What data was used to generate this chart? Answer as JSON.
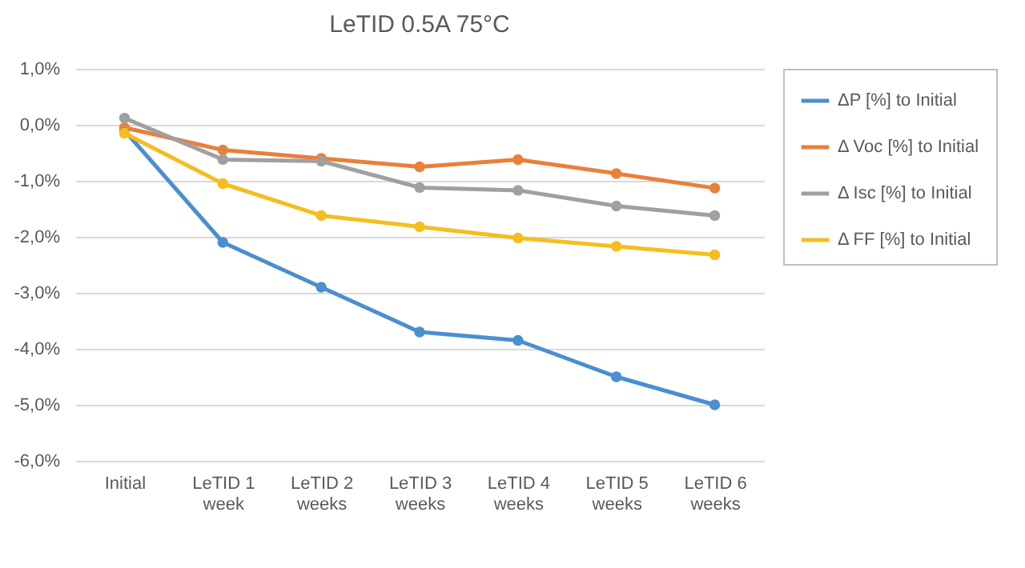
{
  "chart_data": {
    "type": "line",
    "title": "LeTID 0.5A 75°C",
    "categories": [
      "Initial",
      "LeTID 1 week",
      "LeTID 2 weeks",
      "LeTID 3 weeks",
      "LeTID 4 weeks",
      "LeTID 5 weeks",
      "LeTID 6 weeks"
    ],
    "series": [
      {
        "name": "ΔP [%] to Initial",
        "color": "#4a8fcf",
        "values": [
          -0.1,
          -2.1,
          -2.9,
          -3.7,
          -3.85,
          -4.5,
          -5.0
        ]
      },
      {
        "name": "Δ Voc [%] to Initial",
        "color": "#e8803a",
        "values": [
          -0.05,
          -0.45,
          -0.6,
          -0.75,
          -0.62,
          -0.87,
          -1.13
        ]
      },
      {
        "name": "Δ Isc [%] to Initial",
        "color": "#a0a0a0",
        "values": [
          0.12,
          -0.62,
          -0.65,
          -1.12,
          -1.17,
          -1.45,
          -1.62
        ]
      },
      {
        "name": "Δ FF [%] to Initial",
        "color": "#f5bd1f",
        "values": [
          -0.15,
          -1.05,
          -1.62,
          -1.82,
          -2.02,
          -2.17,
          -2.32
        ]
      }
    ],
    "ylim": [
      -6,
      1
    ],
    "yticks": [
      {
        "value": -6,
        "label": "-6,0%"
      },
      {
        "value": -5,
        "label": "-5,0%"
      },
      {
        "value": -4,
        "label": "-4,0%"
      },
      {
        "value": -3,
        "label": "-3,0%"
      },
      {
        "value": -2,
        "label": "-2,0%"
      },
      {
        "value": -1,
        "label": "-1,0%"
      },
      {
        "value": 0,
        "label": "0,0%"
      },
      {
        "value": 1,
        "label": "1,0%"
      }
    ],
    "grid": "y",
    "legend": "right",
    "marker": "circle",
    "line_style": "solid"
  }
}
